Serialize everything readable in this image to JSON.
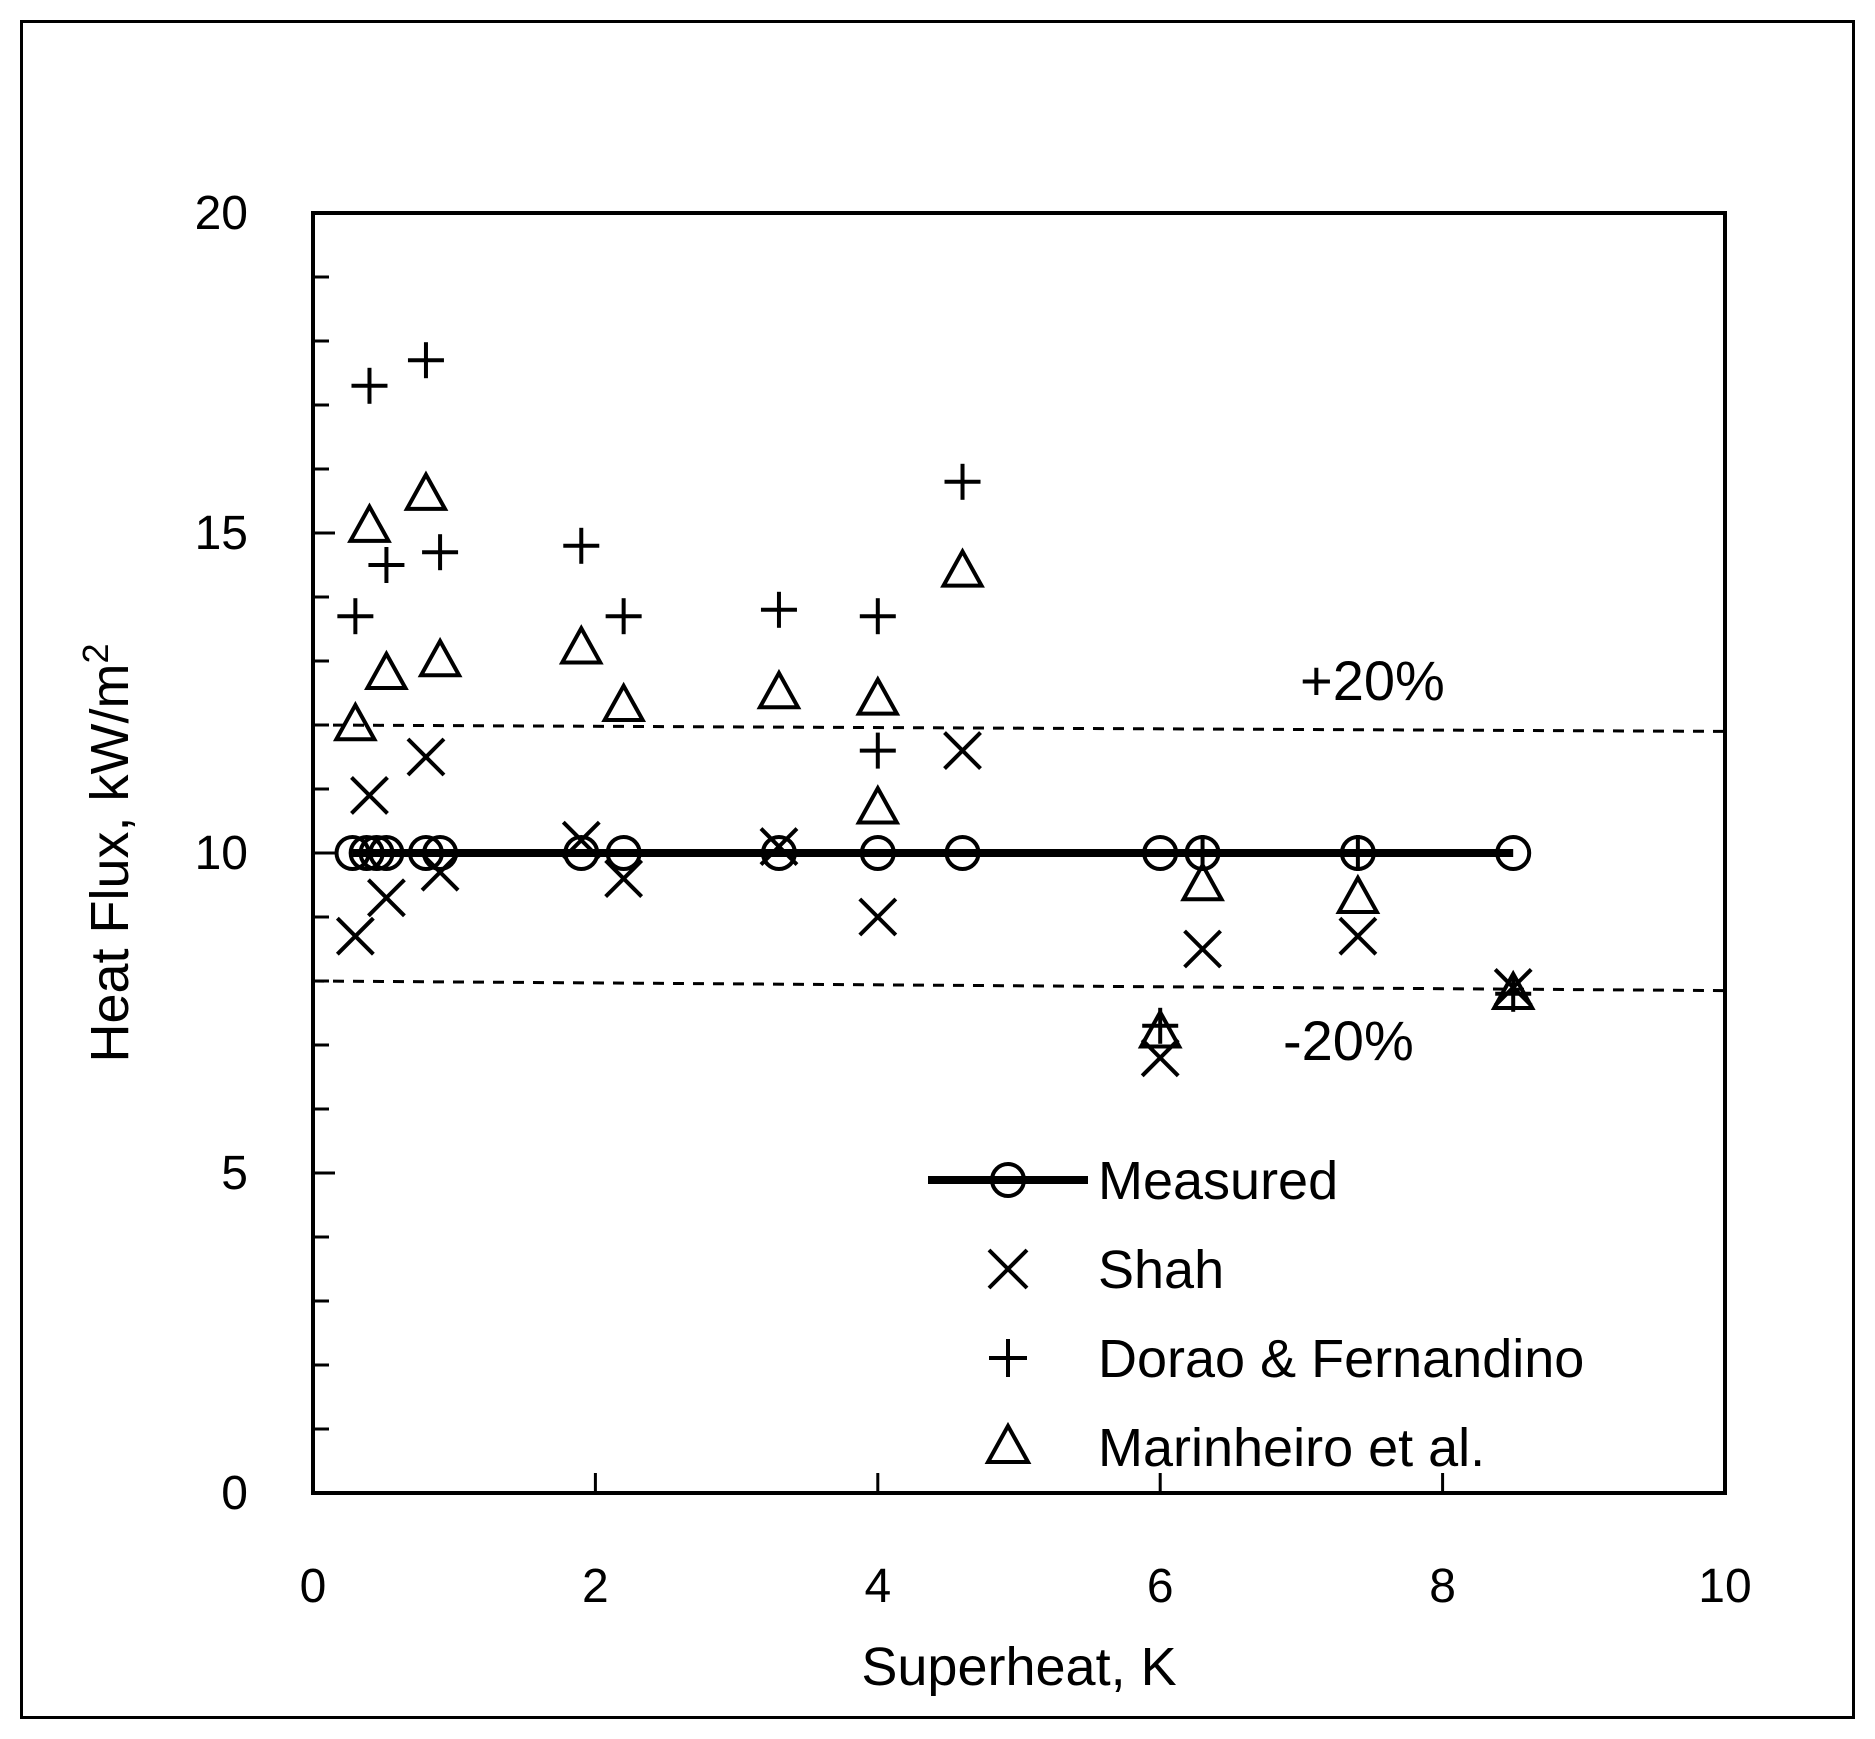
{
  "chart_data": {
    "type": "scatter",
    "xlabel": "Superheat, K",
    "ylabel": "Heat Flux, kW/m",
    "ylabel_sup": "2",
    "xlim": [
      0,
      10
    ],
    "ylim": [
      0,
      20
    ],
    "xticks": [
      0,
      2,
      4,
      6,
      8,
      10
    ],
    "yticks": [
      0,
      5,
      10,
      15,
      20
    ],
    "xtick_labels": [
      "0",
      "2",
      "4",
      "6",
      "8",
      "10"
    ],
    "ytick_labels": [
      "0",
      "5",
      "10",
      "15",
      "20"
    ],
    "y_minor_step": 1,
    "grid": false,
    "legend_position": "bottom-right",
    "reference_lines": [
      {
        "label": "+20%",
        "style": "dashed",
        "y_start": 12.0,
        "y_end": 11.9
      },
      {
        "label": "-20%",
        "style": "dashed",
        "y_start": 8.0,
        "y_end": 7.85
      }
    ],
    "series": [
      {
        "name": "Measured",
        "marker": "circle",
        "line": true,
        "x": [
          0.28,
          0.38,
          0.45,
          0.52,
          0.8,
          0.9,
          1.9,
          2.2,
          3.3,
          4.0,
          4.6,
          6.0,
          6.3,
          7.4,
          8.5
        ],
        "y": [
          10,
          10,
          10,
          10,
          10,
          10,
          10,
          10,
          10,
          10,
          10,
          10,
          10,
          10,
          10
        ]
      },
      {
        "name": "Shah",
        "marker": "x",
        "line": false,
        "x": [
          0.3,
          0.4,
          0.52,
          0.8,
          0.9,
          1.9,
          2.2,
          3.3,
          4.0,
          4.6,
          6.0,
          6.3,
          7.4,
          8.5
        ],
        "y": [
          8.7,
          10.9,
          9.3,
          11.5,
          9.7,
          10.2,
          9.6,
          10.1,
          9.0,
          11.6,
          6.8,
          8.5,
          8.7,
          7.9
        ]
      },
      {
        "name": "Dorao & Fernandino",
        "marker": "plus",
        "line": false,
        "x": [
          0.3,
          0.4,
          0.52,
          0.8,
          0.9,
          1.9,
          2.2,
          3.3,
          4.0,
          4.0,
          4.6,
          6.0,
          6.3,
          7.4,
          8.5
        ],
        "y": [
          13.7,
          17.3,
          14.5,
          17.7,
          14.7,
          14.8,
          13.7,
          13.8,
          13.7,
          11.6,
          15.8,
          7.3,
          10.0,
          10.0,
          7.8
        ]
      },
      {
        "name": "Marinheiro et al.",
        "marker": "triangle",
        "line": false,
        "x": [
          0.3,
          0.4,
          0.52,
          0.8,
          0.9,
          1.9,
          2.2,
          3.3,
          4.0,
          4.0,
          4.6,
          6.0,
          6.3,
          7.4,
          8.5
        ],
        "y": [
          12.0,
          15.1,
          12.8,
          15.6,
          13.0,
          13.2,
          12.3,
          12.5,
          12.4,
          10.7,
          14.4,
          7.2,
          9.5,
          9.3,
          7.8
        ]
      }
    ]
  }
}
